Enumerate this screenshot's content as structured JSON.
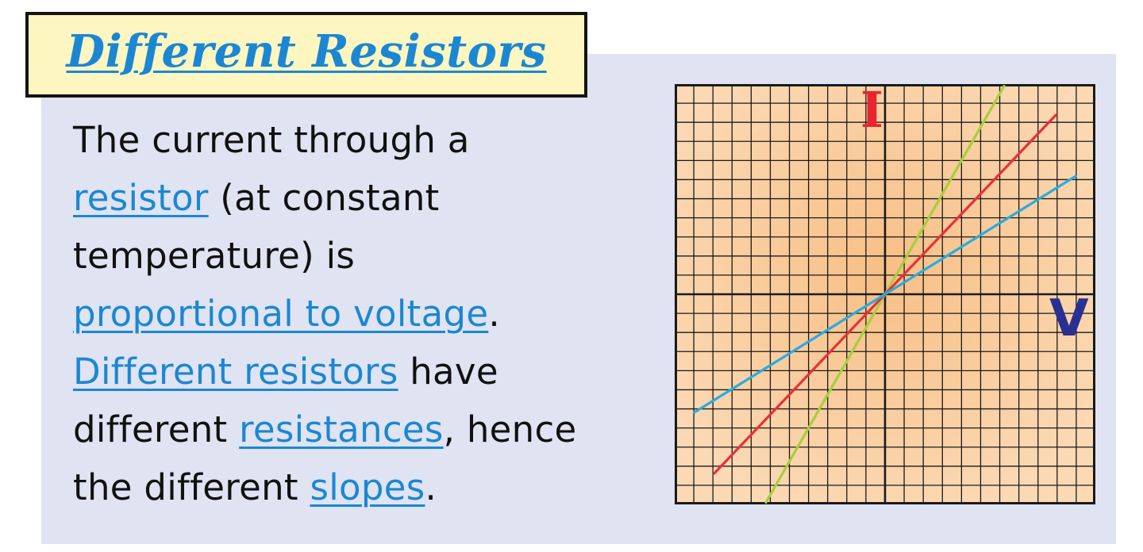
{
  "title": "Different Resistors",
  "text": {
    "s1": "The current through a",
    "k1": "resistor",
    "s2": "(at constant temperature) is",
    "k2": "proportional to voltage",
    "s3": ".",
    "k3": "Different resistors",
    "s4": "have different",
    "k4": "resistances",
    "s5": ", hence the different",
    "k5": "slopes",
    "s6": "."
  },
  "graph": {
    "y_label": "I",
    "x_label": "V",
    "colors": {
      "grid_background": "#fbd9b4",
      "grid_center_glow": "#f7bf85",
      "grid_line": "#1a1a1a",
      "keyword": "#1b87d2",
      "y_label": "#e8242c",
      "x_label": "#2a2f93"
    },
    "lines": [
      {
        "name": "green",
        "color": "#a6cf3c",
        "slope": 1.75
      },
      {
        "name": "red",
        "color": "#e8303a",
        "slope": 1.05
      },
      {
        "name": "blue",
        "color": "#29abe2",
        "slope": 0.62
      }
    ]
  }
}
